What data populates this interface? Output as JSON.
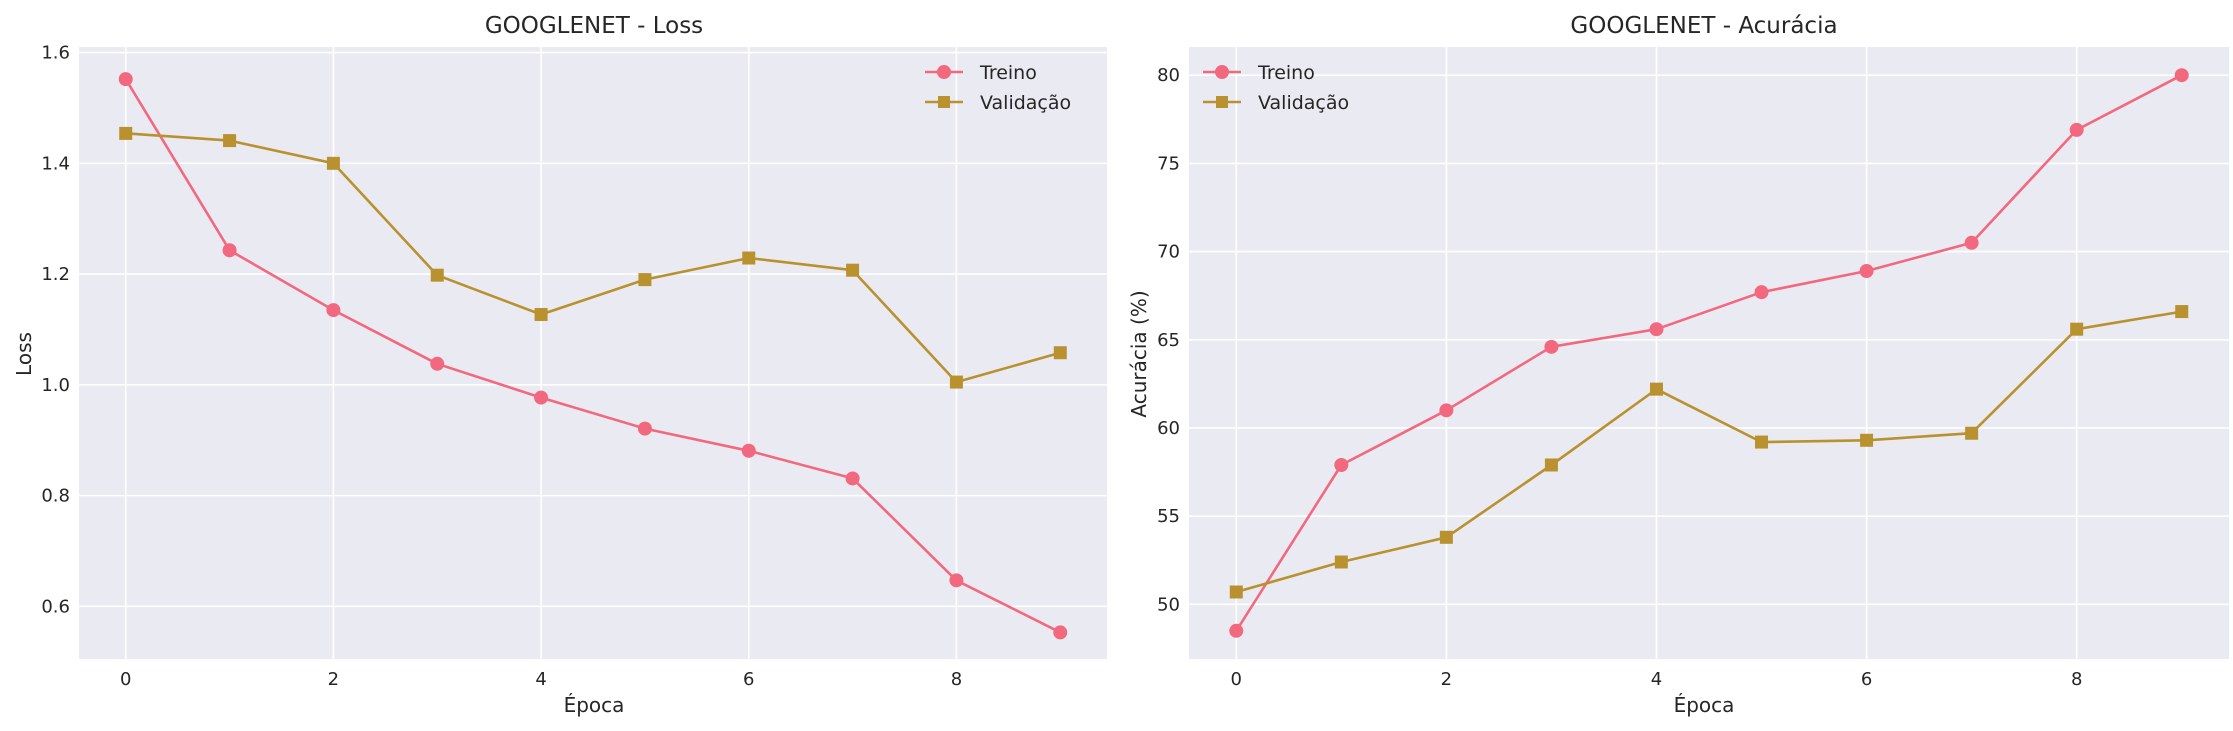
{
  "chart_data": [
    {
      "type": "line",
      "title": "GOOGLENET - Loss",
      "xlabel": "Época",
      "ylabel": "Loss",
      "x": [
        0,
        1,
        2,
        3,
        4,
        5,
        6,
        7,
        8,
        9
      ],
      "xlim": [
        -0.45,
        9.45
      ],
      "ylim": [
        0.505,
        1.61
      ],
      "xticks": [
        0,
        2,
        4,
        6,
        8
      ],
      "yticks": [
        0.6,
        0.8,
        1.0,
        1.2,
        1.4,
        1.6
      ],
      "tick_decimals": 1,
      "grid": true,
      "legend_position": "upper right",
      "series": [
        {
          "name": "Treino",
          "marker": "circle",
          "color": "#f2697f",
          "values": [
            1.552,
            1.243,
            1.135,
            1.038,
            0.977,
            0.921,
            0.881,
            0.831,
            0.647,
            0.553
          ]
        },
        {
          "name": "Validação",
          "marker": "square",
          "color": "#b9912f",
          "values": [
            1.454,
            1.441,
            1.4,
            1.198,
            1.127,
            1.19,
            1.229,
            1.207,
            1.005,
            1.058
          ]
        }
      ]
    },
    {
      "type": "line",
      "title": "GOOGLENET - Acurácia",
      "xlabel": "Época",
      "ylabel": "Acurácia (%)",
      "x": [
        0,
        1,
        2,
        3,
        4,
        5,
        6,
        7,
        8,
        9
      ],
      "xlim": [
        -0.45,
        9.45
      ],
      "ylim": [
        46.9,
        81.6
      ],
      "xticks": [
        0,
        2,
        4,
        6,
        8
      ],
      "yticks": [
        50,
        55,
        60,
        65,
        70,
        75,
        80
      ],
      "tick_decimals": 0,
      "grid": true,
      "legend_position": "upper left",
      "series": [
        {
          "name": "Treino",
          "marker": "circle",
          "color": "#f2697f",
          "values": [
            48.5,
            57.9,
            61.0,
            64.6,
            65.6,
            67.7,
            68.9,
            70.5,
            76.9,
            80.0
          ]
        },
        {
          "name": "Validação",
          "marker": "square",
          "color": "#b9912f",
          "values": [
            50.7,
            52.4,
            53.8,
            57.9,
            62.2,
            59.2,
            59.3,
            59.7,
            65.6,
            66.6
          ]
        }
      ]
    }
  ]
}
